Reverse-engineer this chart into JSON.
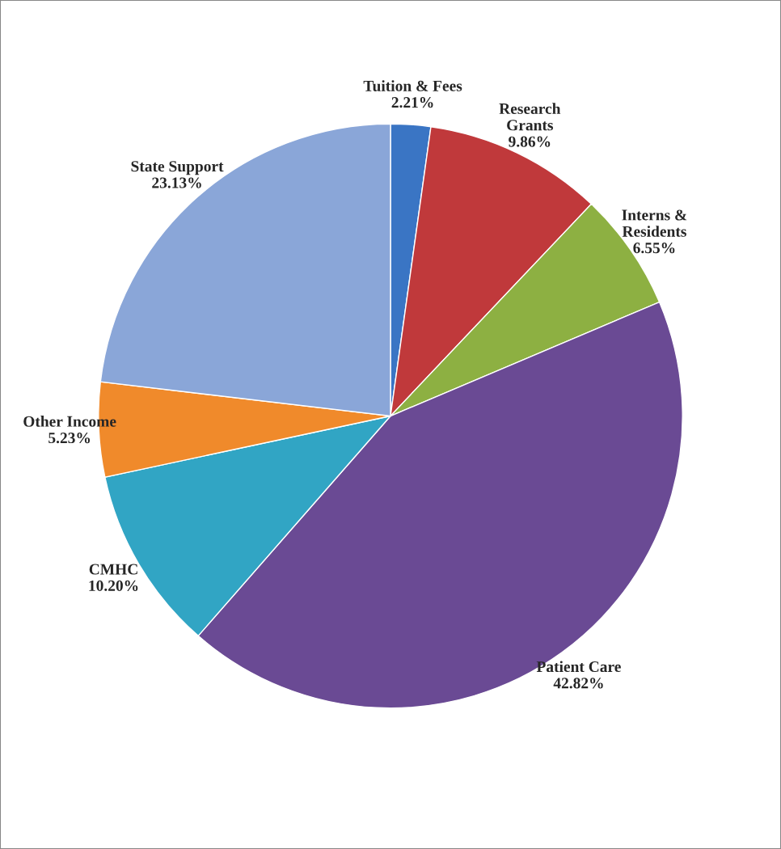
{
  "chart_data": {
    "type": "pie",
    "categories": [
      "Tuition & Fees",
      "Research\nGrants",
      "Interns &\nResidents",
      "Patient Care",
      "CMHC",
      "Other Income",
      "State Support"
    ],
    "values": [
      2.21,
      9.86,
      6.55,
      42.82,
      10.2,
      5.23,
      23.13
    ],
    "value_labels": [
      "2.21%",
      "9.86%",
      "6.55%",
      "42.82%",
      "10.20%",
      "5.23%",
      "23.13%"
    ],
    "colors": [
      "#3a75c4",
      "#c0393b",
      "#8db042",
      "#6a4a94",
      "#31a5c4",
      "#f08a2b",
      "#8aa6d8"
    ],
    "legend": false
  }
}
